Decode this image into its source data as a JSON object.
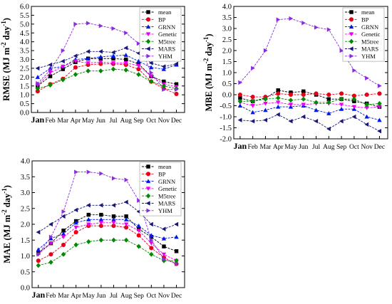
{
  "chart_data": [
    {
      "type": "line",
      "ylabel": "RMSE (MJ m-2 day-1)",
      "ylabel_main": "RMSE (MJ m",
      "ylabel_sup1": "-2",
      "ylabel_mid": " day",
      "ylabel_sup2": "-1",
      "ylabel_end": ")",
      "ylim": [
        0.0,
        6.0
      ],
      "yticks": [
        "0.0",
        "0.5",
        "1.0",
        "1.5",
        "2.0",
        "2.5",
        "3.0",
        "3.5",
        "4.0",
        "4.5",
        "5.0",
        "5.5",
        "6.0"
      ],
      "categories": [
        "Jan",
        "Feb",
        "Mar",
        "Apr",
        "May",
        "Jun",
        "Jul",
        "Aug",
        "Sep",
        "Oct",
        "Nov",
        "Dec"
      ],
      "legend_position": "top-right",
      "series": [
        {
          "name": "mean",
          "values": [
            1.5,
            2.05,
            2.45,
            2.85,
            3.05,
            3.05,
            3.05,
            3.0,
            2.75,
            2.05,
            1.75,
            1.6
          ]
        },
        {
          "name": "BP",
          "values": [
            1.2,
            1.6,
            1.9,
            2.55,
            2.7,
            2.75,
            2.75,
            2.7,
            2.45,
            1.75,
            1.35,
            1.05
          ]
        },
        {
          "name": "GRNN",
          "values": [
            2.0,
            2.5,
            2.6,
            3.0,
            3.05,
            3.15,
            3.2,
            3.25,
            2.9,
            2.55,
            2.45,
            2.7
          ]
        },
        {
          "name": "Genetic",
          "values": [
            1.55,
            2.25,
            2.6,
            2.9,
            2.8,
            2.85,
            2.8,
            2.8,
            2.65,
            2.05,
            1.6,
            1.45
          ]
        },
        {
          "name": "M5tree",
          "values": [
            1.35,
            1.55,
            1.85,
            2.15,
            2.35,
            2.35,
            2.45,
            2.4,
            2.15,
            1.75,
            1.5,
            1.35
          ]
        },
        {
          "name": "MARS",
          "values": [
            2.5,
            2.7,
            2.9,
            3.2,
            3.45,
            3.45,
            3.4,
            3.65,
            3.35,
            2.8,
            2.6,
            2.75
          ]
        },
        {
          "name": "YHM",
          "values": [
            1.65,
            2.4,
            3.5,
            5.0,
            5.05,
            4.9,
            4.75,
            4.5,
            3.9,
            2.25,
            1.3,
            1.3
          ]
        }
      ]
    },
    {
      "type": "line",
      "ylabel": "MBE (MJ m-2 day-1)",
      "ylabel_main": "MBE (MJ m",
      "ylabel_sup1": "-2",
      "ylabel_mid": " day",
      "ylabel_sup2": "-1",
      "ylabel_end": ")",
      "ylim": [
        -2.0,
        4.0
      ],
      "yticks": [
        "-2.0",
        "-1.5",
        "-1.0",
        "-0.5",
        "0.0",
        "0.5",
        "1.0",
        "1.5",
        "2.0",
        "2.5",
        "3.0",
        "3.5",
        "4.0"
      ],
      "categories": [
        "Jan",
        "Feb",
        "Mar",
        "Apr",
        "May",
        "Jun",
        "Jul",
        "Aug",
        "Sep",
        "Oct",
        "Nov",
        "Dec"
      ],
      "legend_position": "top-right",
      "series": [
        {
          "name": "mean",
          "values": [
            -0.15,
            -0.3,
            -0.15,
            0.2,
            0.1,
            0.15,
            0.0,
            -0.2,
            -0.2,
            -0.3,
            -0.4,
            -0.55
          ]
        },
        {
          "name": "BP",
          "values": [
            0.0,
            -0.1,
            -0.1,
            0.05,
            0.0,
            0.0,
            0.05,
            0.0,
            0.05,
            -0.05,
            0.0,
            0.05
          ]
        },
        {
          "name": "GRNN",
          "values": [
            -0.5,
            -0.8,
            -0.7,
            -0.55,
            -0.55,
            -0.5,
            -0.7,
            -0.85,
            -0.65,
            -0.65,
            -1.0,
            -1.15
          ]
        },
        {
          "name": "Genetic",
          "values": [
            -0.35,
            -0.5,
            -0.4,
            -0.35,
            -0.45,
            -0.45,
            -0.4,
            -0.4,
            -0.45,
            -0.55,
            -0.6,
            -0.55
          ]
        },
        {
          "name": "M5tree",
          "values": [
            -0.3,
            -0.3,
            -0.2,
            -0.15,
            -0.25,
            -0.2,
            -0.35,
            -0.35,
            -0.2,
            -0.2,
            -0.45,
            -0.4
          ]
        },
        {
          "name": "MARS",
          "values": [
            -1.15,
            -1.2,
            -1.15,
            -0.9,
            -1.2,
            -1.0,
            -1.2,
            -1.55,
            -1.2,
            -1.0,
            -1.35,
            -1.65
          ]
        },
        {
          "name": "YHM",
          "values": [
            0.55,
            1.2,
            2.0,
            3.4,
            3.45,
            3.25,
            3.05,
            2.95,
            2.0,
            1.1,
            0.75,
            0.4
          ]
        }
      ]
    },
    {
      "type": "line",
      "ylabel": "MAE (MJ m-2 day-1)",
      "ylabel_main": "MAE (MJ m",
      "ylabel_sup1": "-2",
      "ylabel_mid": " day",
      "ylabel_sup2": "-1",
      "ylabel_end": ")",
      "ylim": [
        0.0,
        4.0
      ],
      "yticks": [
        "0.0",
        "0.5",
        "1.0",
        "1.5",
        "2.0",
        "2.5",
        "3.0",
        "3.5",
        "4.0"
      ],
      "categories": [
        "Jan",
        "Feb",
        "Mar",
        "Apr",
        "May",
        "Jun",
        "Jul",
        "Aug",
        "Sep",
        "Oct",
        "Nov",
        "Dec"
      ],
      "legend_position": "top-right",
      "series": [
        {
          "name": "mean",
          "values": [
            1.1,
            1.4,
            1.8,
            2.1,
            2.3,
            2.3,
            2.25,
            2.25,
            1.85,
            1.6,
            1.3,
            1.15
          ]
        },
        {
          "name": "BP",
          "values": [
            0.85,
            1.05,
            1.35,
            1.75,
            1.95,
            1.95,
            1.95,
            1.9,
            1.65,
            1.25,
            0.95,
            0.75
          ]
        },
        {
          "name": "GRNN",
          "values": [
            1.2,
            1.55,
            1.7,
            2.05,
            2.15,
            2.15,
            2.15,
            2.15,
            1.95,
            1.65,
            1.55,
            1.6
          ]
        },
        {
          "name": "Genetic",
          "values": [
            1.05,
            1.4,
            1.6,
            1.9,
            2.0,
            2.05,
            2.05,
            2.0,
            1.8,
            1.4,
            1.05,
            0.85
          ]
        },
        {
          "name": "M5tree",
          "values": [
            0.7,
            0.8,
            1.05,
            1.35,
            1.45,
            1.5,
            1.5,
            1.5,
            1.3,
            1.05,
            0.85,
            0.85
          ]
        },
        {
          "name": "MARS",
          "values": [
            1.75,
            2.0,
            2.25,
            2.45,
            2.6,
            2.6,
            2.6,
            2.7,
            2.4,
            2.0,
            1.85,
            2.0
          ]
        },
        {
          "name": "YHM",
          "values": [
            1.05,
            1.6,
            2.4,
            3.65,
            3.65,
            3.6,
            3.45,
            3.4,
            2.75,
            1.5,
            0.9,
            0.75
          ]
        }
      ]
    }
  ],
  "series_style": {
    "mean": {
      "color": "#000000",
      "marker": "square"
    },
    "BP": {
      "color": "#e8001a",
      "marker": "circle"
    },
    "GRNN": {
      "color": "#0018e8",
      "marker": "triangle-up"
    },
    "Genetic": {
      "color": "#ee00ee",
      "marker": "triangle-down"
    },
    "M5tree": {
      "color": "#008a00",
      "marker": "diamond"
    },
    "MARS": {
      "color": "#18187a",
      "marker": "triangle-left"
    },
    "YHM": {
      "color": "#8a2be2",
      "marker": "triangle-right"
    }
  }
}
